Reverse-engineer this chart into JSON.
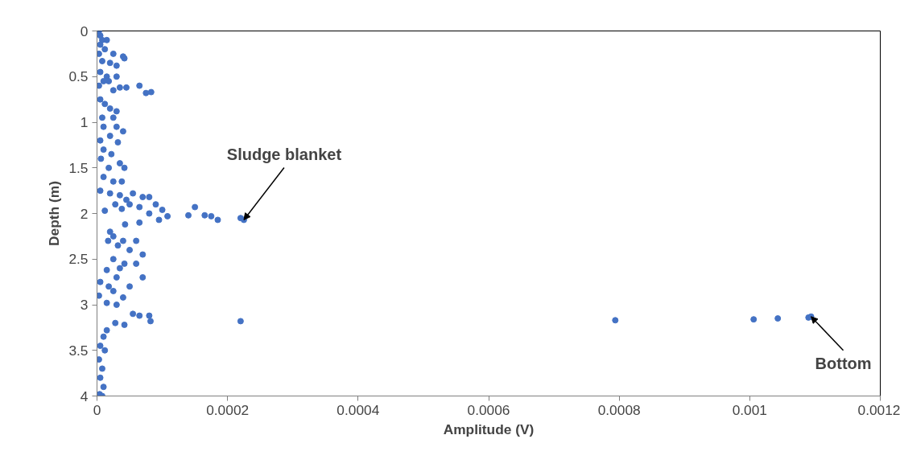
{
  "chart_data": {
    "type": "scatter",
    "xlabel": "Amplitude (V)",
    "ylabel": "Depth (m)",
    "xlim": [
      0,
      0.0012
    ],
    "xticks": [
      0,
      0.0002,
      0.0004,
      0.0006,
      0.0008,
      0.001,
      0.0012
    ],
    "ylim": [
      4,
      0
    ],
    "yticks": [
      0,
      0.5,
      1,
      1.5,
      2,
      2.5,
      3,
      3.5,
      4
    ],
    "grid": false,
    "marker": "circle",
    "annotations": [
      {
        "text": "Sludge blanket",
        "x": 0.000225,
        "y": 2.07
      },
      {
        "text": "Bottom",
        "x": 0.001094,
        "y": 3.13
      }
    ],
    "series": [
      {
        "color": "#4472c4",
        "x": [
          3e-06,
          5e-06,
          8e-06,
          1.5e-05,
          5e-06,
          1.2e-05,
          3e-06,
          2.5e-05,
          4e-05,
          4.2e-05,
          8e-06,
          2e-05,
          3e-05,
          5e-06,
          1.5e-05,
          3e-05,
          1e-05,
          3e-06,
          1.8e-05,
          3.5e-05,
          2.5e-05,
          4.5e-05,
          6.5e-05,
          7.5e-05,
          8.3e-05,
          5e-06,
          1.2e-05,
          2e-05,
          3e-05,
          8e-06,
          2.5e-05,
          1e-05,
          3e-05,
          4e-05,
          2e-05,
          5e-06,
          3.2e-05,
          1e-05,
          2.2e-05,
          6e-06,
          3.5e-05,
          1.8e-05,
          4.2e-05,
          1e-05,
          2.5e-05,
          3.8e-05,
          5e-06,
          2e-05,
          3.5e-05,
          5.5e-05,
          7e-05,
          8e-05,
          4.5e-05,
          2.8e-05,
          1.2e-05,
          3.8e-05,
          5e-05,
          6.5e-05,
          9e-05,
          0.0001,
          8e-05,
          0.000108,
          0.00014,
          0.00015,
          0.000165,
          0.000175,
          0.000185,
          0.00022,
          0.000225,
          9.5e-05,
          6.5e-05,
          4.3e-05,
          2e-05,
          2.5e-05,
          1.7e-05,
          4e-05,
          6e-05,
          3.2e-05,
          5e-05,
          7e-05,
          2.5e-05,
          4.2e-05,
          6e-05,
          3.5e-05,
          1.5e-05,
          3e-05,
          7e-05,
          5e-06,
          1.8e-05,
          5e-05,
          2.5e-05,
          3e-06,
          4e-05,
          1.5e-05,
          3e-05,
          5.5e-05,
          6.5e-05,
          8e-05,
          8.2e-05,
          4.2e-05,
          2.8e-05,
          0.00022,
          0.000794,
          0.001006,
          0.001043,
          0.00109,
          0.001094,
          1.5e-05,
          1e-05,
          5e-06,
          1.2e-05,
          3e-06,
          8e-06,
          5e-06,
          1e-05,
          4e-06,
          8e-06
        ],
        "values": [
          0.0,
          0.05,
          0.1,
          0.1,
          0.15,
          0.2,
          0.25,
          0.25,
          0.28,
          0.3,
          0.33,
          0.35,
          0.38,
          0.45,
          0.5,
          0.5,
          0.55,
          0.6,
          0.55,
          0.62,
          0.65,
          0.62,
          0.6,
          0.68,
          0.67,
          0.75,
          0.8,
          0.85,
          0.88,
          0.95,
          0.95,
          1.05,
          1.05,
          1.1,
          1.15,
          1.2,
          1.22,
          1.3,
          1.35,
          1.4,
          1.45,
          1.5,
          1.5,
          1.6,
          1.65,
          1.65,
          1.75,
          1.78,
          1.8,
          1.78,
          1.82,
          1.82,
          1.85,
          1.9,
          1.97,
          1.95,
          1.9,
          1.93,
          1.9,
          1.96,
          2.0,
          2.03,
          2.02,
          1.93,
          2.02,
          2.03,
          2.07,
          2.05,
          2.07,
          2.07,
          2.1,
          2.12,
          2.2,
          2.25,
          2.3,
          2.3,
          2.3,
          2.35,
          2.4,
          2.45,
          2.5,
          2.55,
          2.55,
          2.6,
          2.62,
          2.7,
          2.7,
          2.75,
          2.8,
          2.8,
          2.85,
          2.9,
          2.92,
          2.98,
          3.0,
          3.1,
          3.12,
          3.12,
          3.18,
          3.22,
          3.2,
          3.18,
          3.17,
          3.16,
          3.15,
          3.14,
          3.13,
          3.28,
          3.35,
          3.45,
          3.5,
          3.6,
          3.7,
          3.8,
          3.9,
          3.98,
          4.0
        ]
      }
    ]
  }
}
